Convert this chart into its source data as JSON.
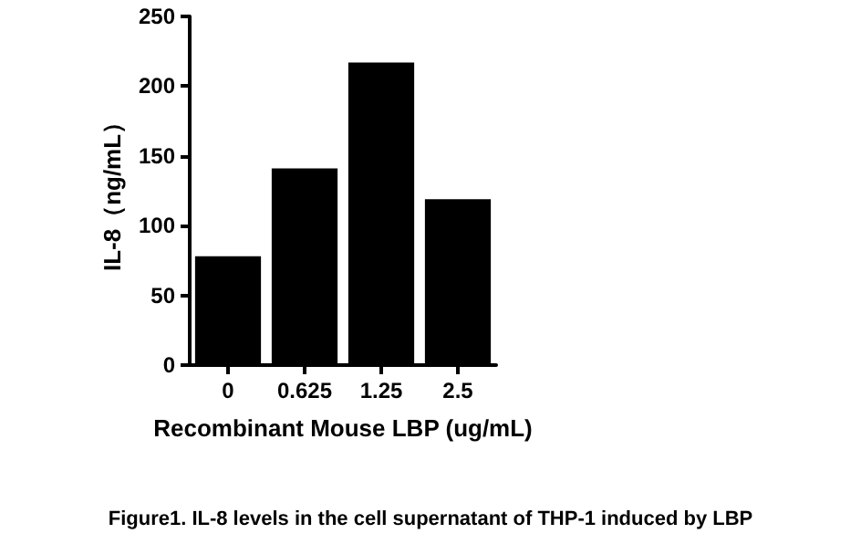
{
  "chart_data": {
    "type": "bar",
    "xlabel": "Recombinant Mouse LBP (ug/mL)",
    "ylabel": "IL-8（ng/mL）",
    "categories": [
      "0",
      "0.625",
      "1.25",
      "2.5"
    ],
    "values": [
      78,
      141,
      217,
      119
    ],
    "color": "#000000",
    "ylim": [
      0,
      250
    ],
    "yticks": [
      0,
      50,
      100,
      150,
      200,
      250
    ],
    "grid": false,
    "annotations": [
      "Figure1. IL-8 levels in the cell supernatant of THP-1 induced by LBP"
    ]
  }
}
